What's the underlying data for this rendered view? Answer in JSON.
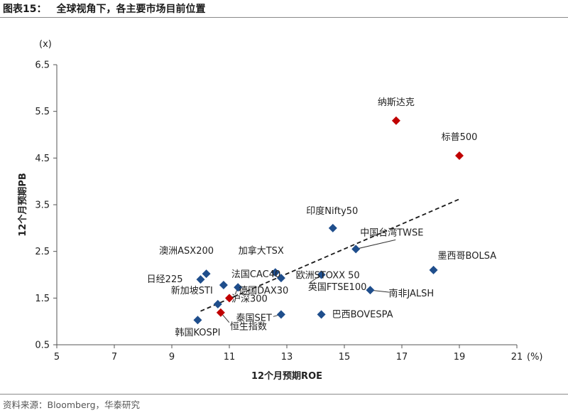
{
  "figure": {
    "label": "图表15：",
    "title": "全球视角下，各主要市场目前位置",
    "source": "资料来源：Bloomberg，华泰研究"
  },
  "colors": {
    "blue": "#1F4E8C",
    "red": "#C00000",
    "axis": "#555555",
    "leader": "#333333"
  },
  "chart_data": {
    "type": "scatter",
    "title": "全球视角下，各主要市场目前位置",
    "xlabel": "12个月预期ROE",
    "ylabel": "12个月预期PB",
    "x_unit": "(%)",
    "y_unit": "(x)",
    "xlim": [
      5,
      21
    ],
    "ylim": [
      0.5,
      6.5
    ],
    "xticks": [
      5,
      7,
      9,
      11,
      13,
      15,
      17,
      19,
      21
    ],
    "yticks": [
      "0.5",
      "1.5",
      "2.5",
      "3.5",
      "4.5",
      "5.5",
      "6.5"
    ],
    "trendline": {
      "style": "dashed",
      "from": [
        10.0,
        1.22
      ],
      "to": [
        19.0,
        3.62
      ]
    },
    "points": [
      {
        "label": "纳斯达克",
        "x": 16.8,
        "y": 5.3,
        "color": "red"
      },
      {
        "label": "标普500",
        "x": 19.0,
        "y": 4.55,
        "color": "red"
      },
      {
        "label": "印度Nifty50",
        "x": 14.6,
        "y": 3.0,
        "color": "blue"
      },
      {
        "label": "中国台湾TWSE",
        "x": 15.4,
        "y": 2.55,
        "color": "blue"
      },
      {
        "label": "墨西哥BOLSA",
        "x": 18.1,
        "y": 2.1,
        "color": "blue"
      },
      {
        "label": "加拿大TSX",
        "x": 12.6,
        "y": 2.05,
        "color": "blue"
      },
      {
        "label": "欧洲STOXX 50",
        "x": 14.2,
        "y": 2.0,
        "color": "blue"
      },
      {
        "label": "澳洲ASX200",
        "x": 10.2,
        "y": 2.02,
        "color": "blue"
      },
      {
        "label": "日经225",
        "x": 10.0,
        "y": 1.9,
        "color": "blue"
      },
      {
        "label": "法国CAC40",
        "x": 10.8,
        "y": 1.78,
        "color": "blue"
      },
      {
        "label": "德国DAX30",
        "x": 11.3,
        "y": 1.73,
        "color": "blue"
      },
      {
        "label": "英国FTSE100",
        "x": 12.8,
        "y": 1.93,
        "color": "blue"
      },
      {
        "label": "南非JALSH",
        "x": 15.9,
        "y": 1.67,
        "color": "blue"
      },
      {
        "label": "新加坡STI",
        "x": 10.6,
        "y": 1.37,
        "color": "blue"
      },
      {
        "label": "沪深300",
        "x": 11.0,
        "y": 1.5,
        "color": "red"
      },
      {
        "label": "恒生指数",
        "x": 10.7,
        "y": 1.19,
        "color": "red"
      },
      {
        "label": "泰国SET",
        "x": 12.8,
        "y": 1.15,
        "color": "blue"
      },
      {
        "label": "巴西BOVESPA",
        "x": 14.2,
        "y": 1.15,
        "color": "blue"
      },
      {
        "label": "韩国KOSPI",
        "x": 9.9,
        "y": 1.03,
        "color": "blue"
      }
    ]
  }
}
